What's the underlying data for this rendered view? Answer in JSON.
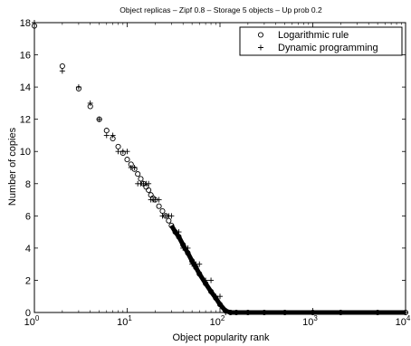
{
  "chart_data": {
    "type": "scatter",
    "title": "Object replicas – Zipf 0.8 – Storage 5 objects – Up prob 0.2",
    "xlabel": "Object popularity rank",
    "ylabel": "Number of copies",
    "xscale": "log",
    "xlim": [
      1,
      10000
    ],
    "ylim": [
      0,
      18
    ],
    "x_ticks": [
      1,
      10,
      100,
      1000,
      10000
    ],
    "x_tick_labels": [
      {
        "base": "10",
        "exp": "0"
      },
      {
        "base": "10",
        "exp": "1"
      },
      {
        "base": "10",
        "exp": "2"
      },
      {
        "base": "10",
        "exp": "3"
      },
      {
        "base": "10",
        "exp": "4"
      }
    ],
    "y_ticks": [
      0,
      2,
      4,
      6,
      8,
      10,
      12,
      14,
      16,
      18
    ],
    "grid": false,
    "legend_position": "top-right",
    "series": [
      {
        "name": "Logarithmic rule",
        "marker": "circle",
        "x": [
          1,
          2,
          3,
          4,
          5,
          6,
          7,
          8,
          9,
          10,
          11,
          12,
          13,
          14,
          15,
          16,
          17,
          18,
          19,
          20,
          22,
          24,
          26,
          28,
          30,
          33,
          36,
          40,
          45,
          50,
          55,
          60,
          70,
          80,
          90,
          100,
          115,
          130,
          150,
          200,
          300,
          500,
          1000,
          2000,
          5000,
          10000
        ],
        "y": [
          17.8,
          15.3,
          13.9,
          12.8,
          12.0,
          11.3,
          10.8,
          10.3,
          9.9,
          9.5,
          9.2,
          8.9,
          8.6,
          8.3,
          8.0,
          7.8,
          7.6,
          7.3,
          7.1,
          7.0,
          6.6,
          6.3,
          6.0,
          5.7,
          5.4,
          5.0,
          4.7,
          4.2,
          3.7,
          3.2,
          2.8,
          2.4,
          1.8,
          1.3,
          0.9,
          0.5,
          0.1,
          0.0,
          0.0,
          0.0,
          0.0,
          0.0,
          0.0,
          0.0,
          0.0,
          0.0
        ]
      },
      {
        "name": "Dynamic programming",
        "marker": "plus",
        "x": [
          1,
          2,
          3,
          4,
          5,
          6,
          7,
          8,
          9,
          10,
          11,
          12,
          13,
          14,
          15,
          16,
          17,
          18,
          19,
          20,
          22,
          24,
          26,
          28,
          30,
          33,
          36,
          40,
          45,
          50,
          55,
          60,
          70,
          80,
          90,
          100,
          115,
          130,
          150,
          200,
          300,
          500,
          1000,
          2000,
          5000,
          10000
        ],
        "y": [
          18,
          15,
          14,
          13,
          12,
          11,
          11,
          10,
          10,
          10,
          9,
          9,
          8,
          8,
          8,
          8,
          8,
          7,
          7,
          7,
          7,
          6,
          6,
          6,
          6,
          5,
          5,
          4,
          4,
          3,
          3,
          3,
          2,
          2,
          1,
          1,
          0,
          0,
          0,
          0,
          0,
          0,
          0,
          0,
          0,
          0
        ]
      }
    ]
  }
}
